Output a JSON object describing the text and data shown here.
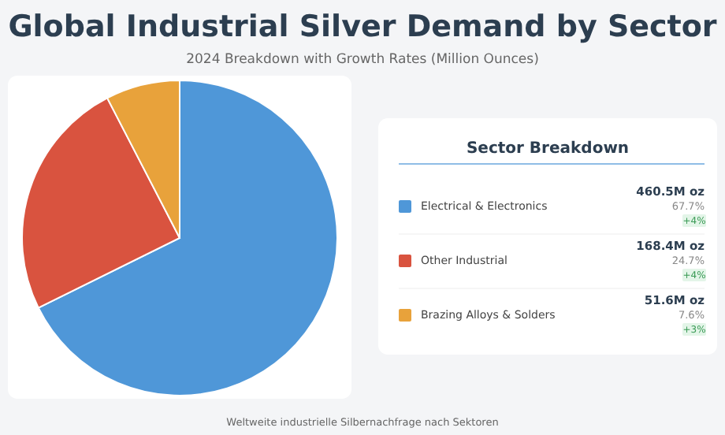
{
  "chart_data": {
    "type": "pie",
    "title": "Global Industrial Silver Demand by Sector",
    "subtitle": "2024 Breakdown with Growth Rates (Million Ounces)",
    "categories": [
      "Electrical & Electronics",
      "Other Industrial",
      "Brazing Alloys & Solders"
    ],
    "values": [
      67.7,
      24.7,
      7.6
    ],
    "colors": [
      "#4f97d8",
      "#d9533f",
      "#e8a23b"
    ],
    "legend_title": "Sector Breakdown",
    "legend": "right",
    "annotations": [
      "460.5M oz",
      "67.7%",
      "+4%",
      "168.4M oz",
      "24.7%",
      "+4%",
      "51.6M oz",
      "7.6%",
      "+3%",
      "Weltweite industrielle Silbernachfrage nach Sektoren"
    ]
  }
}
